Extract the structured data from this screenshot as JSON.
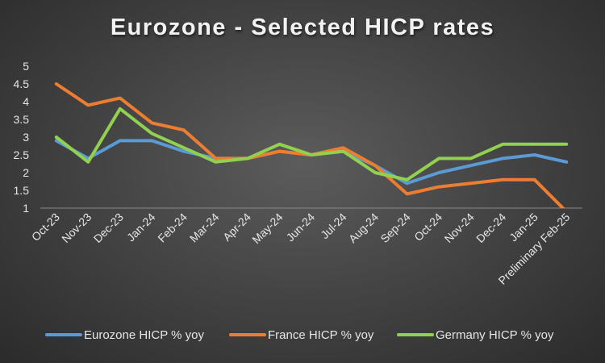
{
  "chart_data": {
    "type": "line",
    "title": "Eurozone - Selected HICP rates",
    "xlabel": "",
    "ylabel": "",
    "ylim": [
      1,
      5
    ],
    "yticks": [
      "1",
      "1.5",
      "2",
      "2.5",
      "3",
      "3.5",
      "4",
      "4.5",
      "5"
    ],
    "grid": false,
    "legend_position": "bottom",
    "categories": [
      "Oct-23",
      "Nov-23",
      "Dec-23",
      "Jan-24",
      "Feb-24",
      "Mar-24",
      "Apr-24",
      "May-24",
      "Jun-24",
      "Jul-24",
      "Aug-24",
      "Sep-24",
      "Oct-24",
      "Nov-24",
      "Dec-24",
      "Jan-25",
      "Preliminary Feb-25"
    ],
    "series": [
      {
        "name": "Eurozone HICP % yoy",
        "color": "#5b9bd5",
        "values": [
          2.9,
          2.4,
          2.9,
          2.9,
          2.6,
          2.4,
          2.4,
          2.6,
          2.5,
          2.6,
          2.2,
          1.7,
          2.0,
          2.2,
          2.4,
          2.5,
          2.3
        ]
      },
      {
        "name": "France HICP % yoy",
        "color": "#ed7d31",
        "values": [
          4.5,
          3.9,
          4.1,
          3.4,
          3.2,
          2.4,
          2.4,
          2.6,
          2.5,
          2.7,
          2.2,
          1.4,
          1.6,
          1.7,
          1.8,
          1.8,
          0.9
        ]
      },
      {
        "name": "Germany HICP % yoy",
        "color": "#92d050",
        "values": [
          3.0,
          2.3,
          3.8,
          3.1,
          2.7,
          2.3,
          2.4,
          2.8,
          2.5,
          2.6,
          2.0,
          1.8,
          2.4,
          2.4,
          2.8,
          2.8,
          2.8
        ]
      }
    ]
  }
}
